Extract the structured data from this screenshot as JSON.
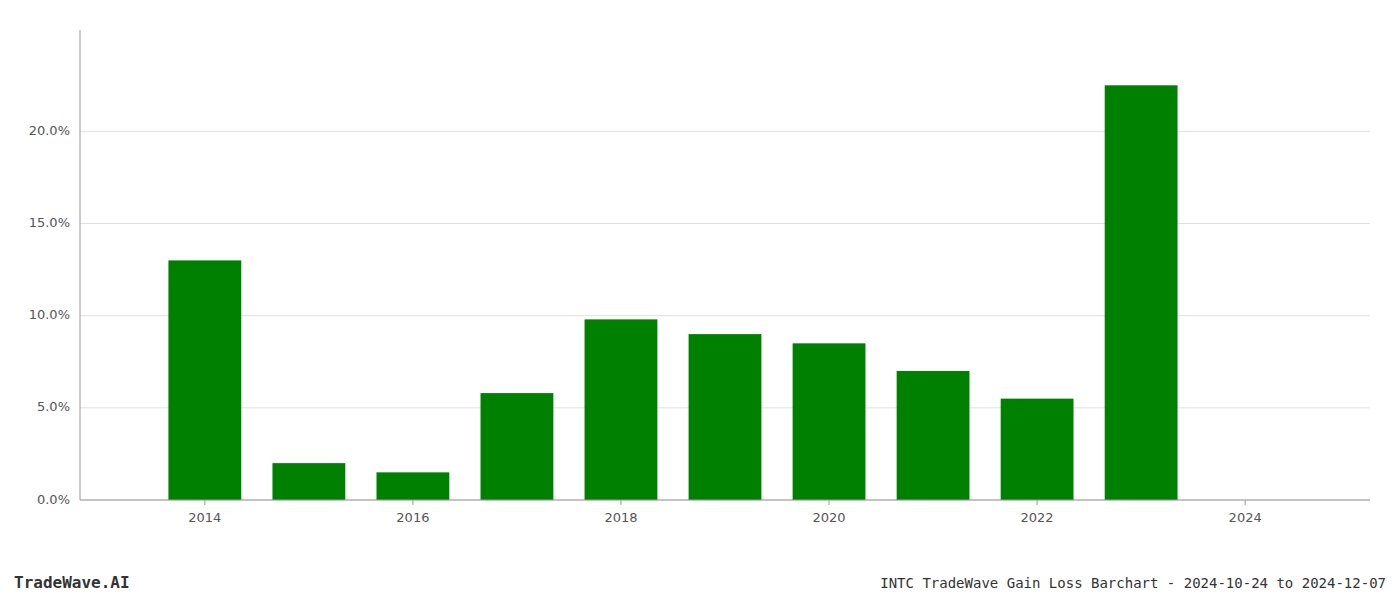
{
  "chart_data": {
    "type": "bar",
    "title": "INTC TradeWave Gain Loss Barchart - 2024-10-24 to 2024-12-07",
    "annotations": [
      "TradeWave.AI"
    ],
    "x": [
      2014,
      2015,
      2016,
      2017,
      2018,
      2019,
      2020,
      2021,
      2022,
      2023
    ],
    "values": [
      0.13,
      0.02,
      0.015,
      0.058,
      0.098,
      0.09,
      0.085,
      0.07,
      0.055,
      0.225
    ],
    "color": "#008000",
    "xlim": [
      2012.8,
      2025.2
    ],
    "xticks": [
      2014,
      2016,
      2018,
      2020,
      2022,
      2024
    ],
    "ylim": [
      0,
      0.255
    ],
    "yticks": [
      {
        "value": 0.0,
        "label": "0.0%"
      },
      {
        "value": 0.05,
        "label": "5.0%"
      },
      {
        "value": 0.1,
        "label": "10.0%"
      },
      {
        "value": 0.15,
        "label": "15.0%"
      },
      {
        "value": 0.2,
        "label": "20.0%"
      }
    ],
    "grid": true
  }
}
